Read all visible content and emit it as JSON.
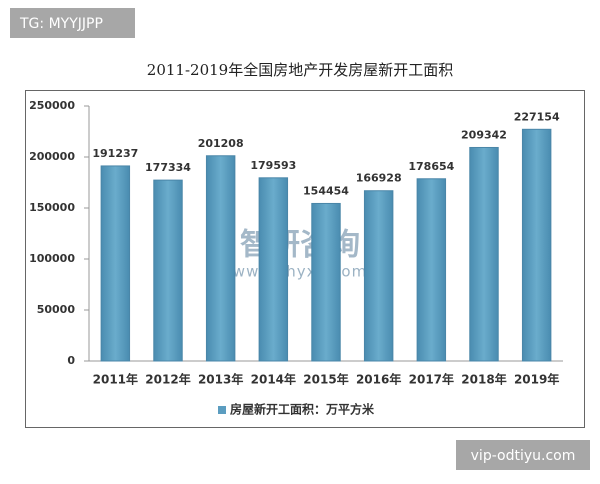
{
  "chart_data": {
    "type": "bar",
    "title": "2011-2019年全国房地产开发房屋新开工面积",
    "categories": [
      "2011年",
      "2012年",
      "2013年",
      "2014年",
      "2015年",
      "2016年",
      "2017年",
      "2018年",
      "2019年"
    ],
    "series": [
      {
        "name": "房屋新开工面积：万平方米",
        "color": "#5b9dc0",
        "values": [
          191237,
          177334,
          201208,
          179593,
          154454,
          166928,
          178654,
          209342,
          227154
        ]
      }
    ],
    "ylim": [
      0,
      250000
    ],
    "yticks": [
      0,
      50000,
      100000,
      150000,
      200000,
      250000
    ],
    "grid": false,
    "legend": "bottom"
  },
  "overlays": {
    "top_left": "TG: MYYJJPP",
    "bottom_right": "vip-odtiyu.com",
    "watermark": "智研咨询",
    "watermark_url": "www.chyxx.com"
  }
}
